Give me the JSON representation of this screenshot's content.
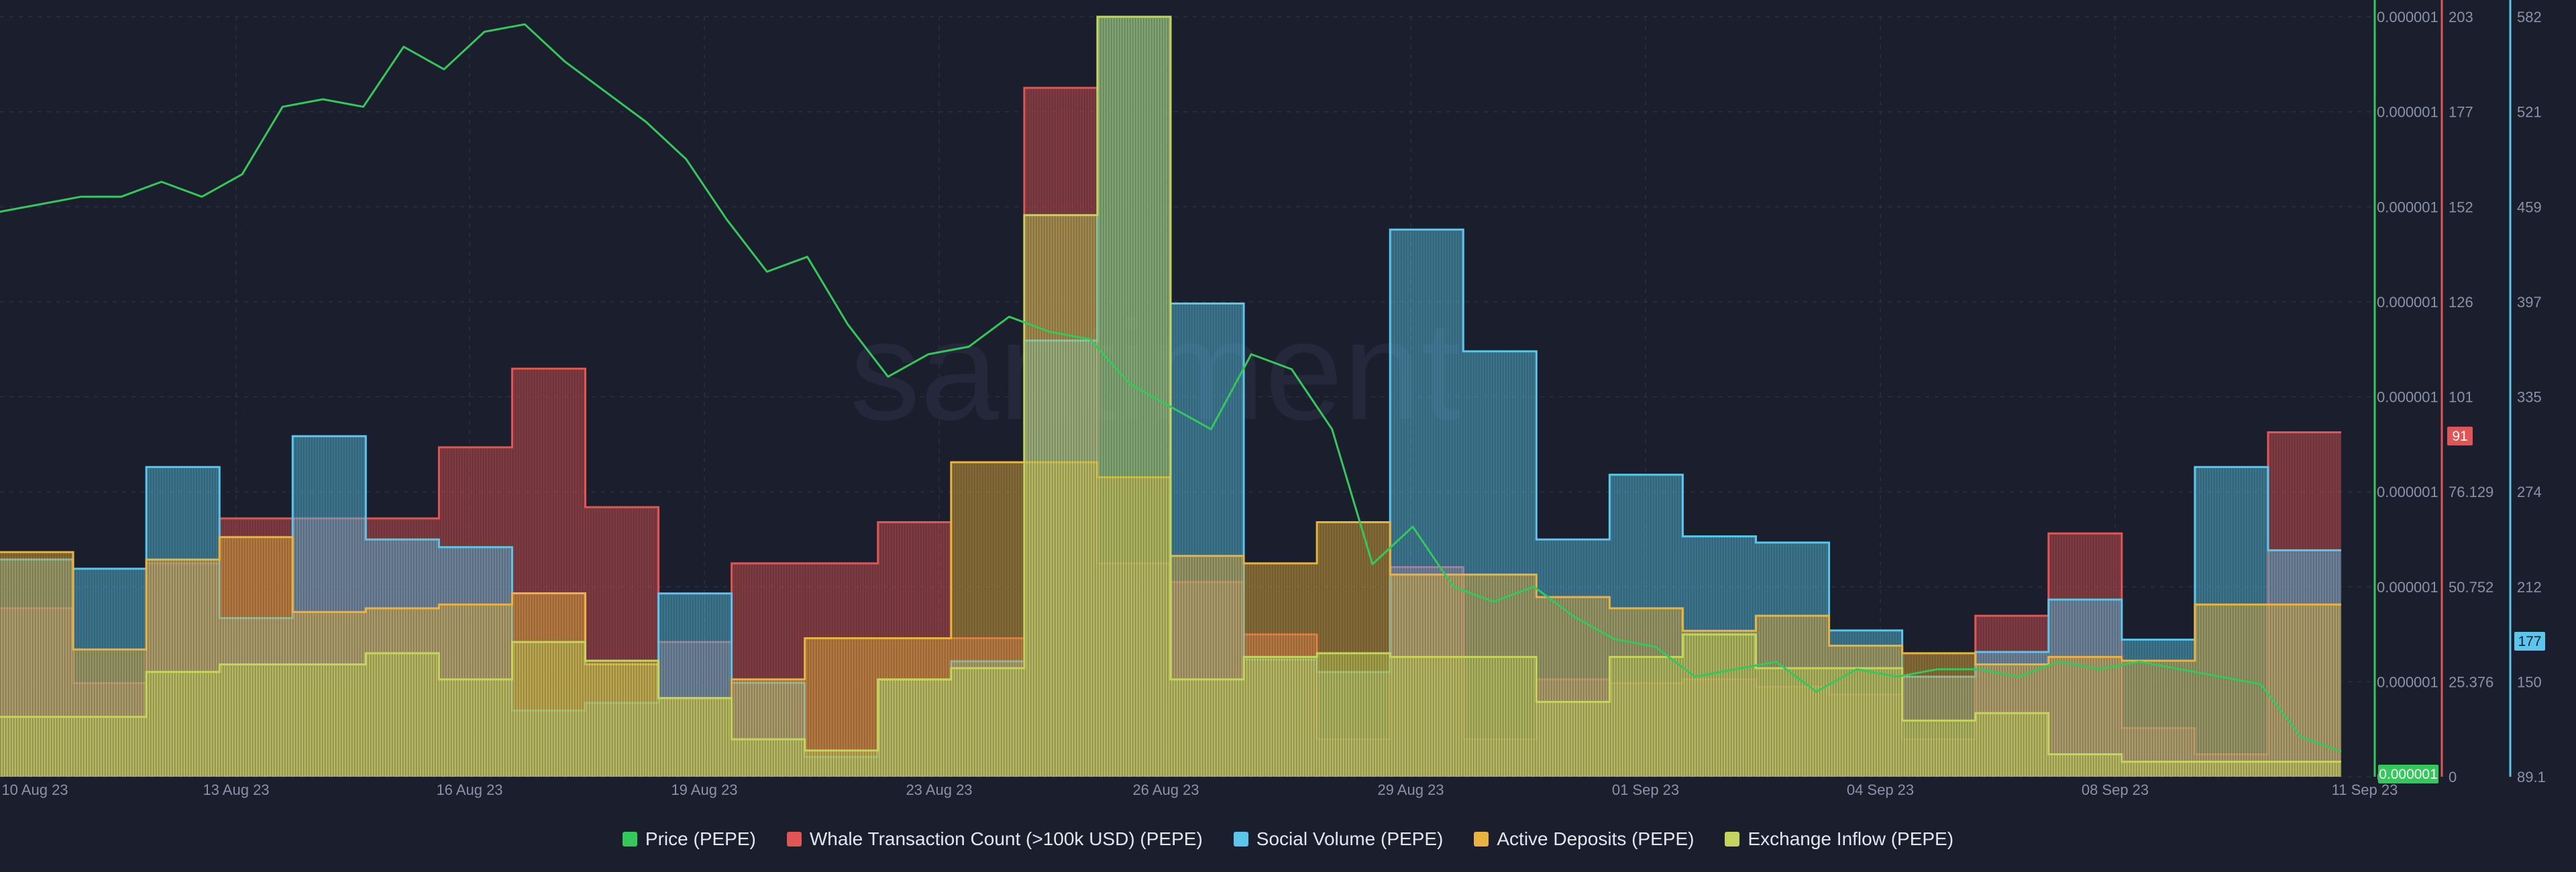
{
  "watermark": "santiment",
  "legend": {
    "items": [
      {
        "label": "Price (PEPE)",
        "color": "#33c95a"
      },
      {
        "label": "Whale Transaction Count (>100k USD) (PEPE)",
        "color": "#e25555"
      },
      {
        "label": "Social Volume (PEPE)",
        "color": "#5bc6ec"
      },
      {
        "label": "Active Deposits (PEPE)",
        "color": "#e9b340"
      },
      {
        "label": "Exchange Inflow (PEPE)",
        "color": "#c4d45c"
      }
    ]
  },
  "chart_data": {
    "type": "bar",
    "grid": true,
    "legend_position": "bottom",
    "x_tick_labels": [
      "10 Aug 23",
      "13 Aug 23",
      "16 Aug 23",
      "19 Aug 23",
      "23 Aug 23",
      "26 Aug 23",
      "29 Aug 23",
      "01 Sep 23",
      "04 Sep 23",
      "08 Sep 23",
      "11 Sep 23"
    ],
    "axes": {
      "price": {
        "ticks": [
          "0",
          "0.000001",
          "0.000001",
          "0.000001",
          "0.000001",
          "0.000001",
          "0.000001",
          "0.000001",
          "0.000001"
        ],
        "current": "0.000001",
        "color": "#33c95a"
      },
      "whale": {
        "ticks": [
          "0",
          "25.376",
          "50.752",
          "76.129",
          "101",
          "126",
          "152",
          "177",
          "203"
        ],
        "ylim": [
          0,
          203
        ],
        "current": "91",
        "color": "#e25555"
      },
      "social": {
        "ticks": [
          "89.1",
          "150",
          "212",
          "274",
          "335",
          "397",
          "459",
          "521",
          "582"
        ],
        "ylim": [
          89.1,
          582
        ],
        "current": "177",
        "color": "#5bc6ec"
      }
    },
    "dates": [
      "10 Aug 23",
      "11 Aug 23",
      "12 Aug 23",
      "13 Aug 23",
      "14 Aug 23",
      "15 Aug 23",
      "16 Aug 23",
      "17 Aug 23",
      "18 Aug 23",
      "19 Aug 23",
      "20 Aug 23",
      "21 Aug 23",
      "22 Aug 23",
      "23 Aug 23",
      "24 Aug 23",
      "25 Aug 23",
      "26 Aug 23",
      "27 Aug 23",
      "28 Aug 23",
      "29 Aug 23",
      "30 Aug 23",
      "31 Aug 23",
      "01 Sep 23",
      "02 Sep 23",
      "03 Sep 23",
      "04 Sep 23",
      "05 Sep 23",
      "06 Sep 23",
      "07 Sep 23",
      "08 Sep 23",
      "09 Sep 23",
      "10 Sep 23"
    ],
    "series": [
      {
        "name": "Whale Transaction Count (>100k USD) (PEPE)",
        "axis": "whale",
        "color": "#e25555",
        "values": [
          45,
          25,
          57,
          69,
          69,
          69,
          88,
          109,
          72,
          36,
          57,
          57,
          68,
          37,
          184,
          57,
          52,
          38,
          10,
          56,
          10,
          26,
          25,
          26,
          24,
          22,
          10,
          43,
          65,
          13,
          6,
          92
        ]
      },
      {
        "name": "Social Volume (PEPE)",
        "axis": "social",
        "color": "#5bc6ec",
        "values": [
          230,
          224,
          290,
          192,
          310,
          243,
          238,
          132,
          137,
          208,
          150,
          102,
          152,
          164,
          372,
          582,
          396,
          165,
          157,
          444,
          365,
          243,
          285,
          245,
          241,
          184,
          154,
          170,
          204,
          178,
          290,
          236
        ]
      },
      {
        "name": "Active Deposits (PEPE)",
        "axis": "whale",
        "color": "#e9b340",
        "values": [
          60,
          34,
          58,
          64,
          44,
          45,
          46,
          49,
          30,
          21,
          26,
          37,
          37,
          84,
          84,
          80,
          59,
          57,
          68,
          54,
          54,
          48,
          45,
          39,
          43,
          35,
          33,
          30,
          32,
          31,
          46,
          46
        ]
      },
      {
        "name": "Exchange Inflow (PEPE)",
        "axis": "whale",
        "color": "#c4d45c",
        "values": [
          16,
          16,
          28,
          30,
          30,
          33,
          26,
          36,
          31,
          21,
          10,
          7,
          26,
          29,
          150,
          203,
          26,
          32,
          33,
          32,
          32,
          20,
          32,
          38,
          29,
          29,
          15,
          17,
          6,
          4,
          4,
          4
        ]
      }
    ],
    "price_series": {
      "name": "Price (PEPE)",
      "color": "#33c95a",
      "scale": "relative",
      "values": [
        0.74,
        0.75,
        0.76,
        0.76,
        0.78,
        0.76,
        0.79,
        0.88,
        0.89,
        0.88,
        0.96,
        0.93,
        0.98,
        0.99,
        0.94,
        0.9,
        0.86,
        0.81,
        0.73,
        0.66,
        0.68,
        0.59,
        0.52,
        0.55,
        0.56,
        0.6,
        0.58,
        0.57,
        0.51,
        0.48,
        0.45,
        0.55,
        0.53,
        0.45,
        0.27,
        0.32,
        0.24,
        0.22,
        0.24,
        0.2,
        0.17,
        0.16,
        0.12,
        0.13,
        0.14,
        0.1,
        0.13,
        0.12,
        0.13,
        0.13,
        0.12,
        0.14,
        0.13,
        0.14,
        0.13,
        0.12,
        0.11,
        0.04,
        0.02
      ]
    }
  }
}
